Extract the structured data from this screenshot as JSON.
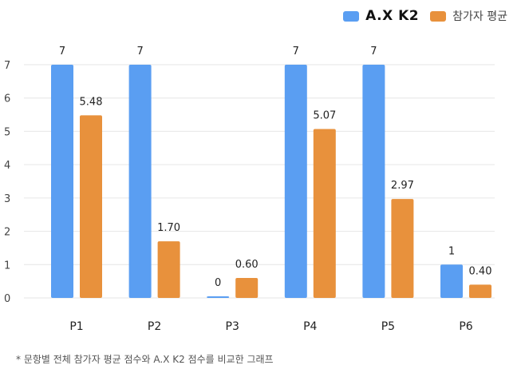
{
  "legend": {
    "series_a": "A.X K2",
    "series_b": "참가자 평균"
  },
  "colors": {
    "series_a": "#5a9ef2",
    "series_b": "#e8913c",
    "grid": "#e6e6e6"
  },
  "footnote": "* 문항별 전체 참가자 평균 점수와 A.X K2 점수를 비교한 그래프",
  "chart_data": {
    "type": "bar",
    "categories": [
      "P1",
      "P2",
      "P3",
      "P4",
      "P5",
      "P6"
    ],
    "series": [
      {
        "name": "A.X K2",
        "values": [
          7,
          7,
          0,
          7,
          7,
          1
        ],
        "labels": [
          "7",
          "7",
          "0",
          "7",
          "7",
          "1"
        ]
      },
      {
        "name": "참가자 평균",
        "values": [
          5.48,
          1.7,
          0.6,
          5.07,
          2.97,
          0.4
        ],
        "labels": [
          "5.48",
          "1.70",
          "0.60",
          "5.07",
          "2.97",
          "0.40"
        ]
      }
    ],
    "yticks": [
      "0",
      "1",
      "2",
      "3",
      "4",
      "5",
      "6",
      "7"
    ],
    "ylim": [
      0,
      7
    ],
    "grid": true,
    "legend_position": "top-right"
  }
}
